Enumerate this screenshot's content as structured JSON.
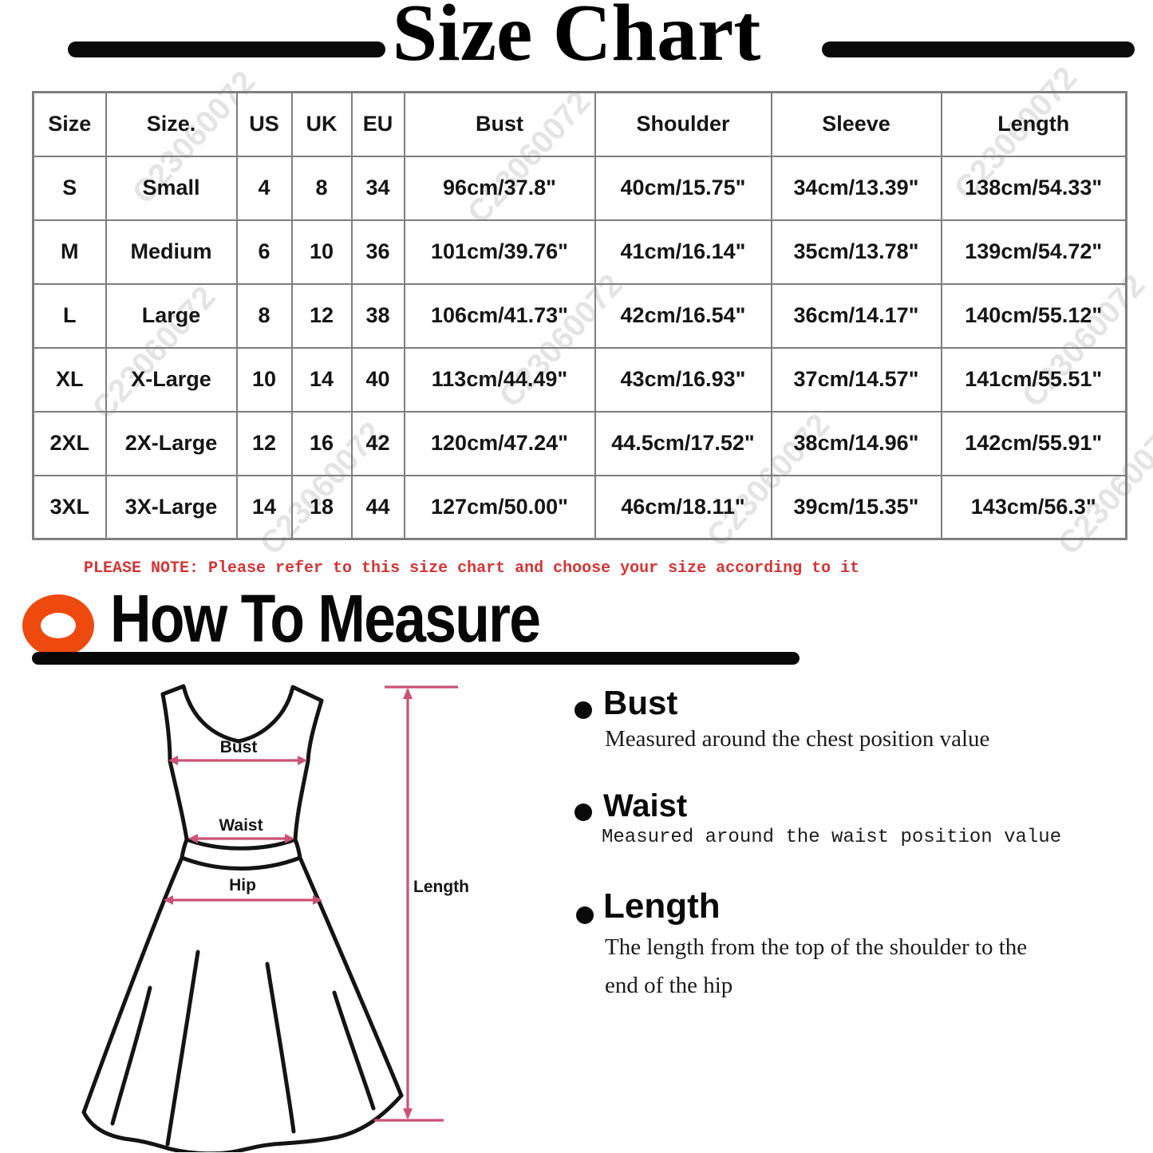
{
  "title": "Size Chart",
  "watermark": "C23060072",
  "size_table": {
    "headers": [
      "Size",
      "Size.",
      "US",
      "UK",
      "EU",
      "Bust",
      "Shoulder",
      "Sleeve",
      "Length"
    ],
    "rows": [
      [
        "S",
        "Small",
        "4",
        "8",
        "34",
        "96cm/37.8\"",
        "40cm/15.75\"",
        "34cm/13.39\"",
        "138cm/54.33\""
      ],
      [
        "M",
        "Medium",
        "6",
        "10",
        "36",
        "101cm/39.76\"",
        "41cm/16.14\"",
        "35cm/13.78\"",
        "139cm/54.72\""
      ],
      [
        "L",
        "Large",
        "8",
        "12",
        "38",
        "106cm/41.73\"",
        "42cm/16.54\"",
        "36cm/14.17\"",
        "140cm/55.12\""
      ],
      [
        "XL",
        "X-Large",
        "10",
        "14",
        "40",
        "113cm/44.49\"",
        "43cm/16.93\"",
        "37cm/14.57\"",
        "141cm/55.51\""
      ],
      [
        "2XL",
        "2X-Large",
        "12",
        "16",
        "42",
        "120cm/47.24\"",
        "44.5cm/17.52\"",
        "38cm/14.96\"",
        "142cm/55.91\""
      ],
      [
        "3XL",
        "3X-Large",
        "14",
        "18",
        "44",
        "127cm/50.00\"",
        "46cm/18.11\"",
        "39cm/15.35\"",
        "143cm/56.3\""
      ]
    ]
  },
  "note": "PLEASE NOTE: Please refer to this size chart and choose your size according to it",
  "how_to_measure": {
    "heading": "How To Measure",
    "items": [
      {
        "label": "Bust",
        "description": "Measured around the chest position value"
      },
      {
        "label": "Waist",
        "description": "Measured around the waist position value"
      },
      {
        "label": "Length",
        "description": "The length from the top of the shoulder to the end of the hip"
      }
    ]
  },
  "diagram_labels": {
    "bust": "Bust",
    "waist": "Waist",
    "hip": "Hip",
    "length": "Length"
  },
  "colors": {
    "note_red": "#d63434",
    "ring_orange": "#ee4a10",
    "arrow_pink": "#cc5273",
    "table_border": "#7e7e7e",
    "watermark_gray": "#b9b9b9"
  }
}
